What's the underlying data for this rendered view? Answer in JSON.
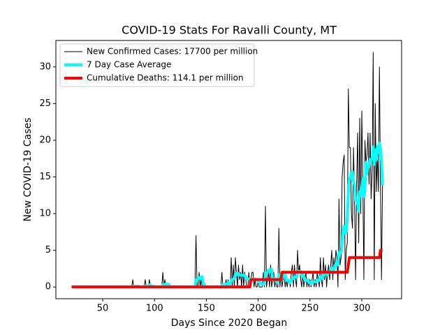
{
  "chart_data": {
    "type": "line",
    "title": "COVID-19 Stats For Ravalli County, MT",
    "xlabel": "Days Since 2020 Began",
    "ylabel": "New COVID-19 Cases",
    "xlim": [
      4.8,
      338.4
    ],
    "ylim": [
      -1.6,
      33.6
    ],
    "xticks": [
      50,
      100,
      150,
      200,
      250,
      300
    ],
    "yticks": [
      0,
      5,
      10,
      15,
      20,
      25,
      30
    ],
    "grid": false,
    "legend": "upper left",
    "x": [
      20,
      21,
      22,
      23,
      24,
      25,
      26,
      27,
      28,
      29,
      30,
      31,
      32,
      33,
      34,
      35,
      36,
      37,
      38,
      39,
      40,
      41,
      42,
      43,
      44,
      45,
      46,
      47,
      48,
      49,
      50,
      51,
      52,
      53,
      54,
      55,
      56,
      57,
      58,
      59,
      60,
      61,
      62,
      63,
      64,
      65,
      66,
      67,
      68,
      69,
      70,
      71,
      72,
      73,
      74,
      75,
      76,
      77,
      78,
      79,
      80,
      81,
      82,
      83,
      84,
      85,
      86,
      87,
      88,
      89,
      90,
      91,
      92,
      93,
      94,
      95,
      96,
      97,
      98,
      99,
      100,
      101,
      102,
      103,
      104,
      105,
      106,
      107,
      108,
      109,
      110,
      111,
      112,
      113,
      114,
      115,
      116,
      117,
      118,
      119,
      120,
      121,
      122,
      123,
      124,
      125,
      126,
      127,
      128,
      129,
      130,
      131,
      132,
      133,
      134,
      135,
      136,
      137,
      138,
      139,
      140,
      141,
      142,
      143,
      144,
      145,
      146,
      147,
      148,
      149,
      150,
      151,
      152,
      153,
      154,
      155,
      156,
      157,
      158,
      159,
      160,
      161,
      162,
      163,
      164,
      165,
      166,
      167,
      168,
      169,
      170,
      171,
      172,
      173,
      174,
      175,
      176,
      177,
      178,
      179,
      180,
      181,
      182,
      183,
      184,
      185,
      186,
      187,
      188,
      189,
      190,
      191,
      192,
      193,
      194,
      195,
      196,
      197,
      198,
      199,
      200,
      201,
      202,
      203,
      204,
      205,
      206,
      207,
      208,
      209,
      210,
      211,
      212,
      213,
      214,
      215,
      216,
      217,
      218,
      219,
      220,
      221,
      222,
      223,
      224,
      225,
      226,
      227,
      228,
      229,
      230,
      231,
      232,
      233,
      234,
      235,
      236,
      237,
      238,
      239,
      240,
      241,
      242,
      243,
      244,
      245,
      246,
      247,
      248,
      249,
      250,
      251,
      252,
      253,
      254,
      255,
      256,
      257,
      258,
      259,
      260,
      261,
      262,
      263,
      264,
      265,
      266,
      267,
      268,
      269,
      270,
      271,
      272,
      273,
      274,
      275,
      276,
      277,
      278,
      279,
      280,
      281,
      282,
      283,
      284,
      285,
      286,
      287,
      288,
      289,
      290,
      291,
      292,
      293,
      294,
      295,
      296,
      297,
      298,
      299,
      300,
      301,
      302,
      303,
      304,
      305,
      306,
      307,
      308,
      309,
      310,
      311,
      312,
      313,
      314,
      315,
      316,
      317,
      318,
      319,
      320
    ],
    "series": [
      {
        "name": "New Confirmed Cases: 17700 per million",
        "color": "#000000",
        "width": 1,
        "values": [
          0,
          0,
          0,
          0,
          0,
          0,
          0,
          0,
          0,
          0,
          0,
          0,
          0,
          0,
          0,
          0,
          0,
          0,
          0,
          0,
          0,
          0,
          0,
          0,
          0,
          0,
          0,
          0,
          0,
          0,
          0,
          0,
          0,
          0,
          0,
          0,
          0,
          0,
          0,
          0,
          0,
          0,
          0,
          0,
          0,
          0,
          0,
          0,
          0,
          0,
          0,
          0,
          0,
          0,
          0,
          0,
          0,
          0,
          0,
          1,
          0,
          0,
          0,
          0,
          0,
          0,
          0,
          0,
          0,
          0,
          0,
          1,
          0,
          0,
          0,
          1,
          0,
          0,
          0,
          0,
          0,
          0,
          0,
          0,
          0,
          0,
          0,
          0,
          2,
          0,
          1,
          0,
          0,
          0,
          0,
          0,
          0,
          0,
          0,
          0,
          0,
          0,
          0,
          0,
          0,
          0,
          0,
          0,
          0,
          0,
          0,
          0,
          0,
          0,
          0,
          0,
          0,
          0,
          0,
          0,
          7,
          0,
          0,
          2,
          0,
          1,
          0,
          0,
          0,
          0,
          0,
          0,
          0,
          0,
          0,
          0,
          0,
          0,
          0,
          0,
          0,
          0,
          0,
          0,
          0,
          2,
          0,
          0,
          0,
          1,
          0,
          1,
          0,
          0,
          4,
          0,
          3,
          0,
          4,
          2,
          0,
          3,
          1,
          2,
          0,
          3,
          0,
          2,
          1,
          0,
          0,
          2,
          0,
          1,
          2,
          2,
          0,
          1,
          0,
          0,
          1,
          0,
          0,
          0,
          0,
          2,
          0,
          11,
          0,
          1,
          2,
          0,
          3,
          0,
          1,
          2,
          0,
          1,
          0,
          0,
          8,
          0,
          2,
          0,
          1,
          2,
          0,
          1,
          0,
          1,
          1,
          0,
          2,
          3,
          0,
          3,
          1,
          0,
          5,
          2,
          3,
          1,
          0,
          2,
          0,
          1,
          2,
          0,
          1,
          0,
          1,
          0,
          1,
          2,
          0,
          1,
          0,
          2,
          1,
          0,
          4,
          1,
          0,
          4,
          1,
          3,
          0,
          2,
          3,
          1,
          3,
          5,
          1,
          4,
          2,
          5,
          4,
          0,
          12,
          3,
          4,
          15,
          17,
          18,
          1,
          5,
          6,
          27,
          19,
          19,
          10,
          8,
          19,
          12,
          1,
          14,
          21,
          6,
          23,
          10,
          24,
          14,
          1,
          20,
          17,
          18,
          21,
          14,
          21,
          12,
          16,
          32,
          1,
          25,
          13,
          18,
          13,
          30,
          14,
          1,
          14
        ]
      },
      {
        "name": "7 Day Case Average",
        "color": "#00ffff",
        "width": 4,
        "values": [
          0,
          0,
          0,
          0,
          0,
          0,
          0,
          0,
          0,
          0,
          0,
          0,
          0,
          0,
          0,
          0,
          0,
          0,
          0,
          0,
          0,
          0,
          0,
          0,
          0,
          0,
          0,
          0,
          0,
          0,
          0,
          0,
          0,
          0,
          0,
          0,
          0,
          0,
          0,
          0,
          0,
          0,
          0,
          0,
          0,
          0,
          0,
          0,
          0,
          0,
          0,
          0,
          0,
          0,
          0,
          0,
          0,
          0,
          0,
          0,
          0.1,
          0.1,
          0.1,
          0.1,
          0.1,
          0.1,
          0,
          0,
          0,
          0,
          0.1,
          0.1,
          0.1,
          0.1,
          0.1,
          0.3,
          0.3,
          0.1,
          0.1,
          0.1,
          0.1,
          0,
          0,
          0,
          0,
          0,
          0,
          0,
          0.3,
          0.3,
          0.4,
          0.4,
          0.4,
          0.4,
          0.3,
          0.1,
          0,
          0,
          0,
          0,
          0,
          0,
          0,
          0,
          0,
          0,
          0,
          0,
          0,
          0,
          0,
          0,
          0,
          0,
          0,
          0,
          0,
          0,
          0,
          0,
          1,
          1,
          1,
          1.3,
          1.3,
          1.4,
          1.4,
          0.4,
          0.4,
          0.1,
          0,
          0,
          0,
          0,
          0,
          0,
          0,
          0,
          0,
          0,
          0,
          0,
          0,
          0,
          0,
          0.3,
          0.3,
          0.3,
          0.3,
          0.4,
          0.4,
          0.6,
          0.3,
          0.3,
          0.9,
          0.9,
          1.1,
          1.1,
          1.6,
          1.9,
          1.9,
          1.7,
          1.6,
          1.6,
          1.6,
          1.6,
          1.6,
          1.6,
          1.3,
          1.1,
          1.1,
          1.1,
          0.9,
          0.9,
          1.1,
          1.1,
          1.1,
          1.1,
          1,
          0.9,
          0.7,
          0.7,
          0.6,
          0.4,
          0.3,
          0.4,
          0.4,
          1.9,
          1.9,
          2,
          2.3,
          2.1,
          2.4,
          2.4,
          1,
          1.1,
          1.1,
          1.1,
          0.6,
          0.6,
          1.7,
          1.6,
          1.6,
          1.6,
          1.4,
          1.9,
          1.9,
          0.9,
          0.9,
          0.9,
          0.9,
          0.6,
          0.9,
          1.1,
          1.1,
          1.4,
          1.4,
          1.3,
          2,
          2.1,
          2.1,
          2.1,
          1.6,
          1.9,
          1.3,
          1,
          0.9,
          0.9,
          1,
          0.6,
          0.6,
          0.4,
          0.7,
          0.7,
          0.7,
          0.7,
          0.7,
          0.9,
          0.9,
          0.9,
          1.4,
          1.4,
          1.1,
          1.6,
          1.7,
          1.9,
          1.9,
          1.6,
          2,
          2,
          2.2,
          2.6,
          2.1,
          2.1,
          2.9,
          3.1,
          3.4,
          3,
          4.7,
          4.6,
          4.7,
          5.9,
          7.7,
          8.3,
          7.3,
          7.4,
          9.4,
          12.7,
          14.7,
          14.9,
          15.6,
          15.7,
          14.3,
          13.9,
          11.9,
          11.9,
          11.3,
          10.3,
          13,
          12.4,
          13.5,
          14.8,
          12.3,
          13.1,
          17,
          15.4,
          16.4,
          16.4,
          17.4,
          17.3,
          17.4,
          19.1,
          16.7,
          18.7,
          17.3,
          19.1,
          18.3,
          19.6,
          18.9,
          17.3,
          13.9
        ]
      },
      {
        "name": "Cumulative Deaths: 114.1 per million",
        "color": "#ff0000",
        "width": 4,
        "values": [
          0,
          0,
          0,
          0,
          0,
          0,
          0,
          0,
          0,
          0,
          0,
          0,
          0,
          0,
          0,
          0,
          0,
          0,
          0,
          0,
          0,
          0,
          0,
          0,
          0,
          0,
          0,
          0,
          0,
          0,
          0,
          0,
          0,
          0,
          0,
          0,
          0,
          0,
          0,
          0,
          0,
          0,
          0,
          0,
          0,
          0,
          0,
          0,
          0,
          0,
          0,
          0,
          0,
          0,
          0,
          0,
          0,
          0,
          0,
          0,
          0,
          0,
          0,
          0,
          0,
          0,
          0,
          0,
          0,
          0,
          0,
          0,
          0,
          0,
          0,
          0,
          0,
          0,
          0,
          0,
          0,
          0,
          0,
          0,
          0,
          0,
          0,
          0,
          0,
          0,
          0,
          0,
          0,
          0,
          0,
          0,
          0,
          0,
          0,
          0,
          0,
          0,
          0,
          0,
          0,
          0,
          0,
          0,
          0,
          0,
          0,
          0,
          0,
          0,
          0,
          0,
          0,
          0,
          0,
          0,
          0,
          0,
          0,
          0,
          0,
          0,
          0,
          0,
          0,
          0,
          0,
          0,
          0,
          0,
          0,
          0,
          0,
          0,
          0,
          0,
          0,
          0,
          0,
          0,
          0,
          0,
          0,
          0,
          0,
          0,
          0,
          0,
          0,
          0,
          0,
          0,
          0,
          0,
          0,
          0,
          0,
          0,
          0,
          0,
          0,
          0,
          0,
          0,
          0,
          0,
          0,
          0,
          0,
          1,
          1,
          1,
          1,
          1,
          1,
          1,
          1,
          1,
          1,
          1,
          1,
          1,
          1,
          1,
          1,
          1,
          1,
          1,
          1,
          1,
          1,
          1,
          1,
          1,
          1,
          1,
          1,
          1,
          1,
          2,
          2,
          2,
          2,
          2,
          2,
          2,
          2,
          2,
          2,
          2,
          2,
          2,
          2,
          2,
          2,
          2,
          2,
          2,
          2,
          2,
          2,
          2,
          2,
          2,
          2,
          2,
          2,
          2,
          2,
          2,
          2,
          2,
          2,
          2,
          2,
          2,
          2,
          2,
          2,
          2,
          2,
          2,
          2,
          2,
          2,
          2,
          2,
          2,
          2,
          2,
          2,
          2,
          2,
          2,
          2,
          2,
          2,
          2,
          2,
          2,
          2,
          2,
          2,
          3,
          4,
          4,
          4,
          4,
          4,
          4,
          4,
          4,
          4,
          4,
          4,
          4,
          4,
          4,
          4,
          4,
          4,
          4,
          4,
          4,
          4,
          4,
          4,
          4,
          4,
          4,
          4,
          4,
          4,
          4,
          5,
          5,
          5
        ]
      }
    ]
  }
}
